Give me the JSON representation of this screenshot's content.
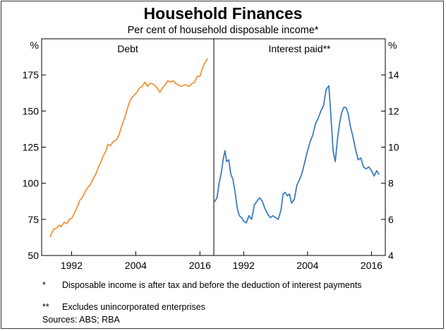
{
  "title": "Household Finances",
  "subtitle": "Per cent of household disposable income*",
  "chart_data": [
    {
      "type": "line",
      "title": "Debt",
      "ylabel": "%",
      "ylim": [
        50,
        200
      ],
      "yticks": [
        50,
        75,
        100,
        125,
        150,
        175
      ],
      "xlim": [
        1986.4,
        2018.6
      ],
      "xticks": [
        1992,
        2004,
        2016
      ],
      "grid": false,
      "series": [
        {
          "color": "#f0943a",
          "x": [
            1988.0,
            1988.6,
            1989.2,
            1989.7,
            1990.1,
            1990.6,
            1991.1,
            1991.6,
            1992.1,
            1992.6,
            1993.1,
            1993.5,
            1994.0,
            1994.5,
            1995.0,
            1995.5,
            1996.0,
            1996.5,
            1997.0,
            1997.4,
            1997.9,
            1998.4,
            1998.8,
            1999.3,
            1999.8,
            2000.4,
            2000.9,
            2001.4,
            2001.9,
            2002.4,
            2002.8,
            2003.2,
            2003.7,
            2004.2,
            2004.7,
            2005.2,
            2005.7,
            2006.2,
            2006.6,
            2007.0,
            2007.5,
            2008.0,
            2008.5,
            2009.0,
            2009.5,
            2010.0,
            2010.5,
            2011.0,
            2011.5,
            2012.0,
            2012.5,
            2013.0,
            2013.5,
            2014.0,
            2014.5,
            2015.0,
            2015.5,
            2016.0,
            2016.5,
            2017.0,
            2017.4
          ],
          "values": [
            63,
            68,
            69,
            71,
            70,
            73,
            72,
            75,
            76,
            80,
            84,
            88,
            90,
            94,
            97,
            99,
            103,
            106,
            111,
            114,
            119,
            122,
            127,
            126,
            129,
            130,
            134,
            140,
            145,
            151,
            156,
            159,
            161,
            163,
            166,
            167,
            170,
            167,
            169,
            169,
            168,
            166,
            163,
            166,
            168,
            171,
            170,
            171,
            169,
            168,
            167,
            168,
            168,
            167,
            169,
            170,
            174,
            174,
            180,
            184,
            186
          ]
        }
      ]
    },
    {
      "type": "line",
      "title": "Interest paid**",
      "ylabel": "%",
      "ylim": [
        4,
        16
      ],
      "yticks": [
        4,
        6,
        8,
        10,
        12,
        14
      ],
      "xlim": [
        1986.4,
        2018.6
      ],
      "xticks": [
        1992,
        2004,
        2016
      ],
      "grid": false,
      "series": [
        {
          "color": "#3d7dc0",
          "x": [
            1986.6,
            1987.0,
            1987.4,
            1987.8,
            1988.2,
            1988.5,
            1988.8,
            1989.2,
            1989.6,
            1990.0,
            1990.4,
            1990.8,
            1991.2,
            1991.6,
            1992.0,
            1992.5,
            1993.0,
            1993.5,
            1994.0,
            1994.5,
            1995.0,
            1995.5,
            1996.0,
            1996.5,
            1997.0,
            1997.5,
            1998.0,
            1998.5,
            1999.0,
            1999.4,
            1999.8,
            2000.2,
            2000.6,
            2001.0,
            2001.5,
            2002.0,
            2002.5,
            2003.0,
            2003.5,
            2004.0,
            2004.5,
            2005.0,
            2005.5,
            2006.0,
            2006.5,
            2007.0,
            2007.5,
            2008.0,
            2008.5,
            2008.8,
            2009.2,
            2009.6,
            2010.0,
            2010.4,
            2010.8,
            2011.2,
            2011.6,
            2012.0,
            2012.5,
            2013.0,
            2013.5,
            2014.0,
            2014.5,
            2015.0,
            2015.5,
            2016.0,
            2016.5,
            2017.0,
            2017.4
          ],
          "values": [
            7.0,
            7.2,
            8.0,
            8.6,
            9.4,
            9.8,
            9.2,
            9.3,
            8.5,
            8.2,
            7.5,
            6.6,
            6.2,
            6.1,
            5.9,
            5.8,
            6.2,
            6.0,
            6.8,
            7.0,
            7.2,
            7.0,
            6.6,
            6.3,
            6.1,
            6.2,
            6.1,
            6.0,
            6.5,
            7.4,
            7.5,
            7.3,
            7.4,
            6.9,
            7.1,
            7.9,
            8.2,
            8.6,
            9.2,
            9.8,
            10.3,
            10.7,
            11.3,
            11.6,
            12.0,
            12.3,
            13.2,
            13.4,
            11.2,
            9.8,
            9.2,
            10.4,
            11.3,
            11.9,
            12.2,
            12.2,
            11.9,
            11.2,
            10.6,
            9.9,
            9.3,
            9.4,
            8.9,
            8.8,
            8.9,
            8.7,
            8.4,
            8.7,
            8.5
          ]
        }
      ]
    }
  ],
  "footnotes": [
    {
      "mark": "*",
      "text": "Disposable income is after tax and before the deduction of interest payments"
    },
    {
      "mark": "**",
      "text": "Excludes unincorporated enterprises"
    }
  ],
  "sources": "Sources:   ABS; RBA"
}
